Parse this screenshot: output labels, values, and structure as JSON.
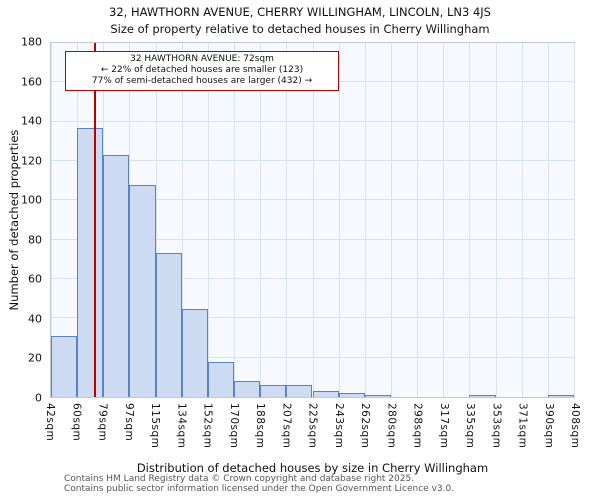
{
  "header": {
    "title": "32, HAWTHORN AVENUE, CHERRY WILLINGHAM, LINCOLN, LN3 4JS",
    "subtitle": "Size of property relative to detached houses in Cherry Willingham"
  },
  "annotation": {
    "line1": "32 HAWTHORN AVENUE: 72sqm",
    "line2": "← 22% of detached houses are smaller (123)",
    "line3": "77% of semi-detached houses are larger (432) →"
  },
  "footer": {
    "line1": "Contains HM Land Registry data © Crown copyright and database right 2025.",
    "line2": "Contains public sector information licensed under the Open Government Licence v3.0."
  },
  "chart_data": {
    "type": "bar",
    "title": "Size of property relative to detached houses in Cherry Willingham",
    "xlabel": "Distribution of detached houses by size in Cherry Willingham",
    "ylabel": "Number of detached properties",
    "ylim": [
      0,
      180
    ],
    "ytick_step": 20,
    "grid": true,
    "legend": "none",
    "bin_edges_sqm": [
      42,
      60,
      79,
      97,
      115,
      134,
      152,
      170,
      188,
      207,
      225,
      243,
      262,
      280,
      298,
      317,
      335,
      353,
      371,
      390,
      408
    ],
    "tick_labels": [
      "42sqm",
      "60sqm",
      "79sqm",
      "97sqm",
      "115sqm",
      "134sqm",
      "152sqm",
      "170sqm",
      "188sqm",
      "207sqm",
      "225sqm",
      "243sqm",
      "262sqm",
      "280sqm",
      "298sqm",
      "317sqm",
      "335sqm",
      "353sqm",
      "371sqm",
      "390sqm",
      "408sqm"
    ],
    "values": [
      31,
      137,
      123,
      108,
      73,
      45,
      18,
      8,
      6,
      6,
      3,
      2,
      1,
      0,
      0,
      0,
      1,
      0,
      0,
      1
    ],
    "marker": {
      "label": "32 HAWTHORN AVENUE",
      "value_sqm": 72
    },
    "colors": {
      "bar_fill": "#ccdbf1",
      "bar_border": "#5b82c3",
      "marker_line": "#bb0000",
      "grid": "#d9e2f0",
      "plot_bg": "#f6f9fd",
      "annotation_border": "#bb0000"
    }
  }
}
